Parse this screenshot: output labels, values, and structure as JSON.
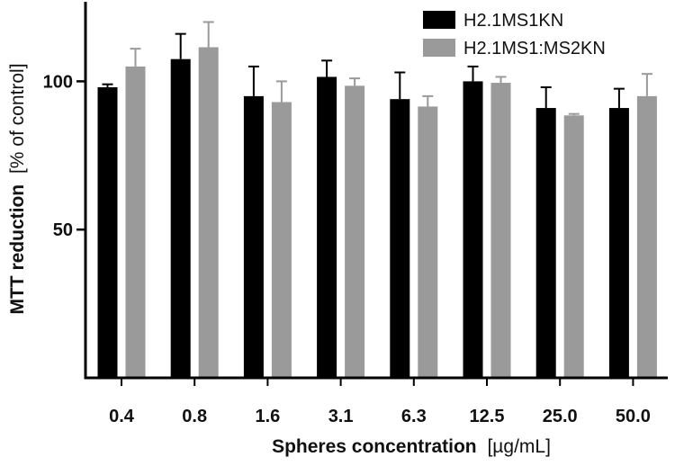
{
  "chart_data": {
    "type": "bar",
    "xlabel_bold": "Spheres concentration",
    "xlabel_unit": "[µg/mL]",
    "ylabel_bold": "MTT reduction",
    "ylabel_unit": "[% of control]",
    "categories": [
      "0.4",
      "0.8",
      "1.6",
      "3.1",
      "6.3",
      "12.5",
      "25.0",
      "50.0"
    ],
    "ylim": [
      0,
      125
    ],
    "yticks": [
      50,
      100
    ],
    "legend_position": "top-right",
    "series": [
      {
        "name": "H2.1MS1KN",
        "color": "#000000",
        "values": [
          98,
          107.5,
          95,
          101.5,
          94,
          100,
          91,
          91
        ],
        "errors": [
          1,
          8.5,
          10,
          5.5,
          9,
          5,
          7,
          6.5
        ]
      },
      {
        "name": "H2.1MS1:MS2KN",
        "color": "#9a9a9a",
        "values": [
          105,
          111.5,
          93,
          98.5,
          91.5,
          99.5,
          88.5,
          95
        ],
        "errors": [
          6,
          8.5,
          7,
          2.5,
          3.5,
          2,
          0.5,
          7.5
        ]
      }
    ]
  }
}
